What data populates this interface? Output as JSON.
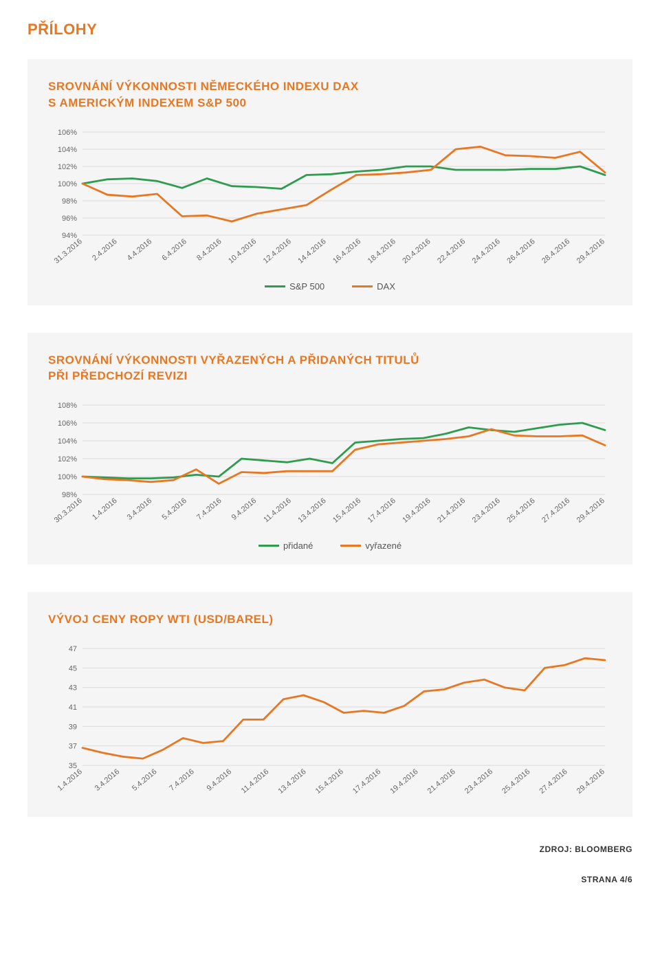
{
  "page_title": "PŘÍLOHY",
  "source_label": "ZDROJ: BLOOMBERG",
  "footer_label": "STRANA 4/6",
  "colors": {
    "accent": "#e87722",
    "panel_bg": "#f5f5f5",
    "grid": "#dcdcdc",
    "axis_text": "#666666",
    "series_green": "#2e9b4f",
    "series_orange": "#e87722"
  },
  "chart1": {
    "type": "line",
    "title": "SROVNÁNÍ VÝKONNOSTI NĚMECKÉHO INDEXU DAX\nS AMERICKÝM INDEXEM S&P 500",
    "ylim": [
      94,
      106
    ],
    "ytick_step": 2,
    "ytick_suffix": "%",
    "x_labels": [
      "31.3.2016",
      "2.4.2016",
      "4.4.2016",
      "6.4.2016",
      "8.4.2016",
      "10.4.2016",
      "12.4.2016",
      "14.4.2016",
      "16.4.2016",
      "18.4.2016",
      "20.4.2016",
      "22.4.2016",
      "24.4.2016",
      "26.4.2016",
      "28.4.2016",
      "29.4.2016"
    ],
    "series": [
      {
        "name": "S&P 500",
        "color": "#2e9b4f",
        "values": [
          100,
          100.5,
          100.6,
          100.3,
          99.5,
          100.6,
          99.7,
          99.6,
          99.4,
          101.0,
          101.1,
          101.4,
          101.6,
          102.0,
          102.0,
          101.6,
          101.6,
          101.6,
          101.7,
          101.7,
          102.0,
          101.0
        ]
      },
      {
        "name": "DAX",
        "color": "#e87722",
        "values": [
          100,
          98.7,
          98.5,
          98.8,
          96.2,
          96.3,
          95.6,
          96.5,
          97.0,
          97.5,
          99.3,
          101.0,
          101.1,
          101.3,
          101.6,
          104.0,
          104.3,
          103.3,
          103.2,
          103.0,
          103.7,
          101.3
        ]
      }
    ],
    "legend": [
      "S&P 500",
      "DAX"
    ],
    "line_width": 2.8,
    "label_fontsize": 11
  },
  "chart2": {
    "type": "line",
    "title": "SROVNÁNÍ VÝKONNOSTI VYŘAZENÝCH A PŘIDANÝCH TITULŮ\nPŘI PŘEDCHOZÍ REVIZI",
    "ylim": [
      98,
      108
    ],
    "ytick_step": 2,
    "ytick_suffix": "%",
    "x_labels": [
      "30.3.2016",
      "1.4.2016",
      "3.4.2016",
      "5.4.2016",
      "7.4.2016",
      "9.4.2016",
      "11.4.2016",
      "13.4.2016",
      "15.4.2016",
      "17.4.2016",
      "19.4.2016",
      "21.4.2016",
      "23.4.2016",
      "25.4.2016",
      "27.4.2016",
      "29.4.2016"
    ],
    "series": [
      {
        "name": "přidané",
        "color": "#2e9b4f",
        "values": [
          100,
          99.9,
          99.8,
          99.8,
          99.9,
          100.2,
          100.0,
          102.0,
          101.8,
          101.6,
          102.0,
          101.5,
          103.8,
          104.0,
          104.2,
          104.3,
          104.8,
          105.5,
          105.2,
          105.0,
          105.4,
          105.8,
          106.0,
          105.2
        ]
      },
      {
        "name": "vyřazené",
        "color": "#e87722",
        "values": [
          100,
          99.7,
          99.6,
          99.4,
          99.6,
          100.8,
          99.2,
          100.5,
          100.4,
          100.6,
          100.6,
          100.6,
          103.0,
          103.6,
          103.8,
          104.0,
          104.2,
          104.5,
          105.3,
          104.6,
          104.5,
          104.5,
          104.6,
          103.5
        ]
      }
    ],
    "legend": [
      "přidané",
      "vyřazené"
    ],
    "line_width": 2.8,
    "label_fontsize": 11
  },
  "chart3": {
    "type": "line",
    "title": "VÝVOJ CENY ROPY WTI (USD/BAREL)",
    "ylim": [
      35,
      47
    ],
    "ytick_step": 2,
    "ytick_suffix": "",
    "x_labels": [
      "1.4.2016",
      "3.4.2016",
      "5.4.2016",
      "7.4.2016",
      "9.4.2016",
      "11.4.2016",
      "13.4.2016",
      "15.4.2016",
      "17.4.2016",
      "19.4.2016",
      "21.4.2016",
      "23.4.2016",
      "25.4.2016",
      "27.4.2016",
      "29.4.2016"
    ],
    "series": [
      {
        "name": "WTI",
        "color": "#e87722",
        "values": [
          36.8,
          36.3,
          35.9,
          35.7,
          36.6,
          37.8,
          37.3,
          37.5,
          39.7,
          39.7,
          41.8,
          42.2,
          41.5,
          40.4,
          40.6,
          40.4,
          41.1,
          42.6,
          42.8,
          43.5,
          43.8,
          43.0,
          42.7,
          45.0,
          45.3,
          46.0,
          45.8
        ]
      }
    ],
    "legend": [],
    "line_width": 2.8,
    "label_fontsize": 11
  }
}
